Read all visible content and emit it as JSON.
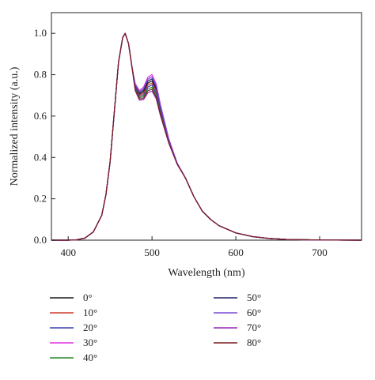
{
  "chart_data": {
    "type": "line",
    "title": "",
    "xlabel": "Wavelength (nm)",
    "ylabel": "Normalized intensity (a.u.)",
    "xlim": [
      380,
      750
    ],
    "ylim": [
      0,
      1.1
    ],
    "x_ticks": [
      "400",
      "500",
      "600",
      "700"
    ],
    "y_ticks": [
      "0.0",
      "0.2",
      "0.4",
      "0.6",
      "0.8",
      "1.0"
    ],
    "x_tick_values": [
      400,
      500,
      600,
      700
    ],
    "y_tick_values": [
      0,
      0.2,
      0.4,
      0.6,
      0.8,
      1.0
    ],
    "legend_position": "below",
    "x": [
      380,
      400,
      410,
      420,
      430,
      440,
      445,
      450,
      455,
      460,
      465,
      468,
      472,
      476,
      480,
      485,
      490,
      495,
      500,
      505,
      510,
      520,
      530,
      540,
      550,
      560,
      570,
      580,
      600,
      620,
      640,
      660,
      680,
      700,
      720,
      750
    ],
    "base": [
      0,
      0,
      0.002,
      0.01,
      0.04,
      0.12,
      0.22,
      0.38,
      0.62,
      0.86,
      0.98,
      1.0,
      0.95,
      0.84,
      0.74,
      0.7,
      0.71,
      0.75,
      0.76,
      0.72,
      0.63,
      0.48,
      0.37,
      0.3,
      0.21,
      0.14,
      0.1,
      0.07,
      0.035,
      0.017,
      0.008,
      0.004,
      0.002,
      0.001,
      0.0005,
      0
    ],
    "series": [
      {
        "name": "0°",
        "color": "#1a1a1a",
        "peak2": 0.77
      },
      {
        "name": "10°",
        "color": "#d13a2f",
        "peak2": 0.76
      },
      {
        "name": "20°",
        "color": "#3a3fb0",
        "peak2": 0.75
      },
      {
        "name": "30°",
        "color": "#e030e0",
        "peak2": 0.8
      },
      {
        "name": "40°",
        "color": "#2a8a2a",
        "peak2": 0.74
      },
      {
        "name": "50°",
        "color": "#222266",
        "peak2": 0.78
      },
      {
        "name": "60°",
        "color": "#7a4bd6",
        "peak2": 0.79
      },
      {
        "name": "70°",
        "color": "#9a22b5",
        "peak2": 0.72
      },
      {
        "name": "80°",
        "color": "#7a1f1f",
        "peak2": 0.73
      }
    ]
  }
}
